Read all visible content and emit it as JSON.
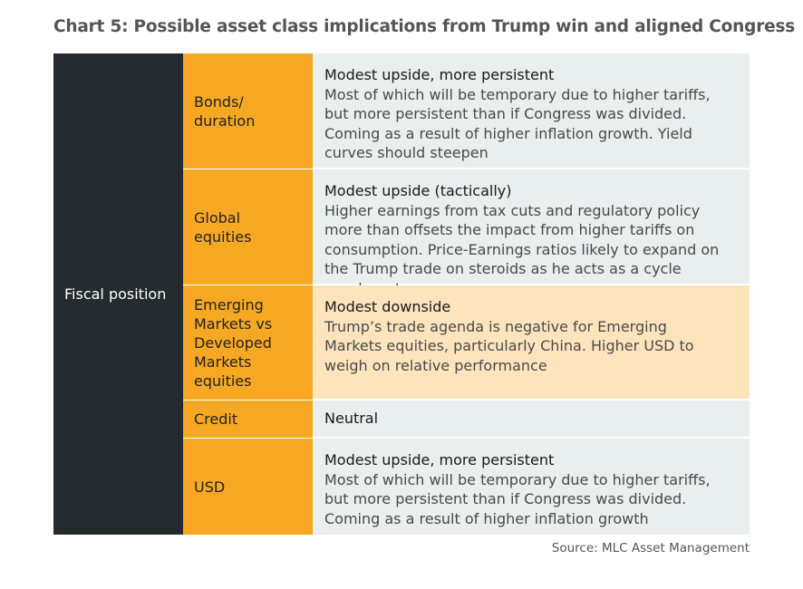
{
  "title": "Chart 5: Possible asset class implications from Trump win and aligned Congress",
  "row_header": "Fiscal position",
  "rows": [
    {
      "category": "Bonds/\nduration",
      "heading": "Modest upside, more persistent",
      "body": "Most of which will be temporary due to higher tariffs, but more persistent than if Congress was divided. Coming as a result of higher inflation growth. Yield curves should steepen"
    },
    {
      "category": "Global\nequities",
      "heading": "Modest upside (tactically)",
      "body": "Higher earnings from tax cuts and regulatory policy more than offsets the impact from higher tariffs on consumption. Price-Earnings ratios likely to expand on the Trump trade on steroids as he acts as a cycle accelerant"
    },
    {
      "category": "Emerging\nMarkets vs\nDeveloped\nMarkets\nequities",
      "heading": "Modest downside",
      "body": "Trump’s trade agenda is negative for Emerging Markets equities, particularly China. Higher USD to weigh on relative performance"
    },
    {
      "category": "Credit",
      "heading": "Neutral",
      "body": ""
    },
    {
      "category": "USD",
      "heading": "Modest upside, more persistent",
      "body": "Most of which will be temporary due to higher tariffs, but more persistent than if Congress was divided. Coming as a result of higher inflation growth"
    }
  ],
  "source": "Source: MLC Asset Management",
  "colors": {
    "header_dark": "#232b2e",
    "category_orange": "#f7a823",
    "description_grey": "#e9eeee",
    "highlight_peach": "#fde4bd"
  }
}
